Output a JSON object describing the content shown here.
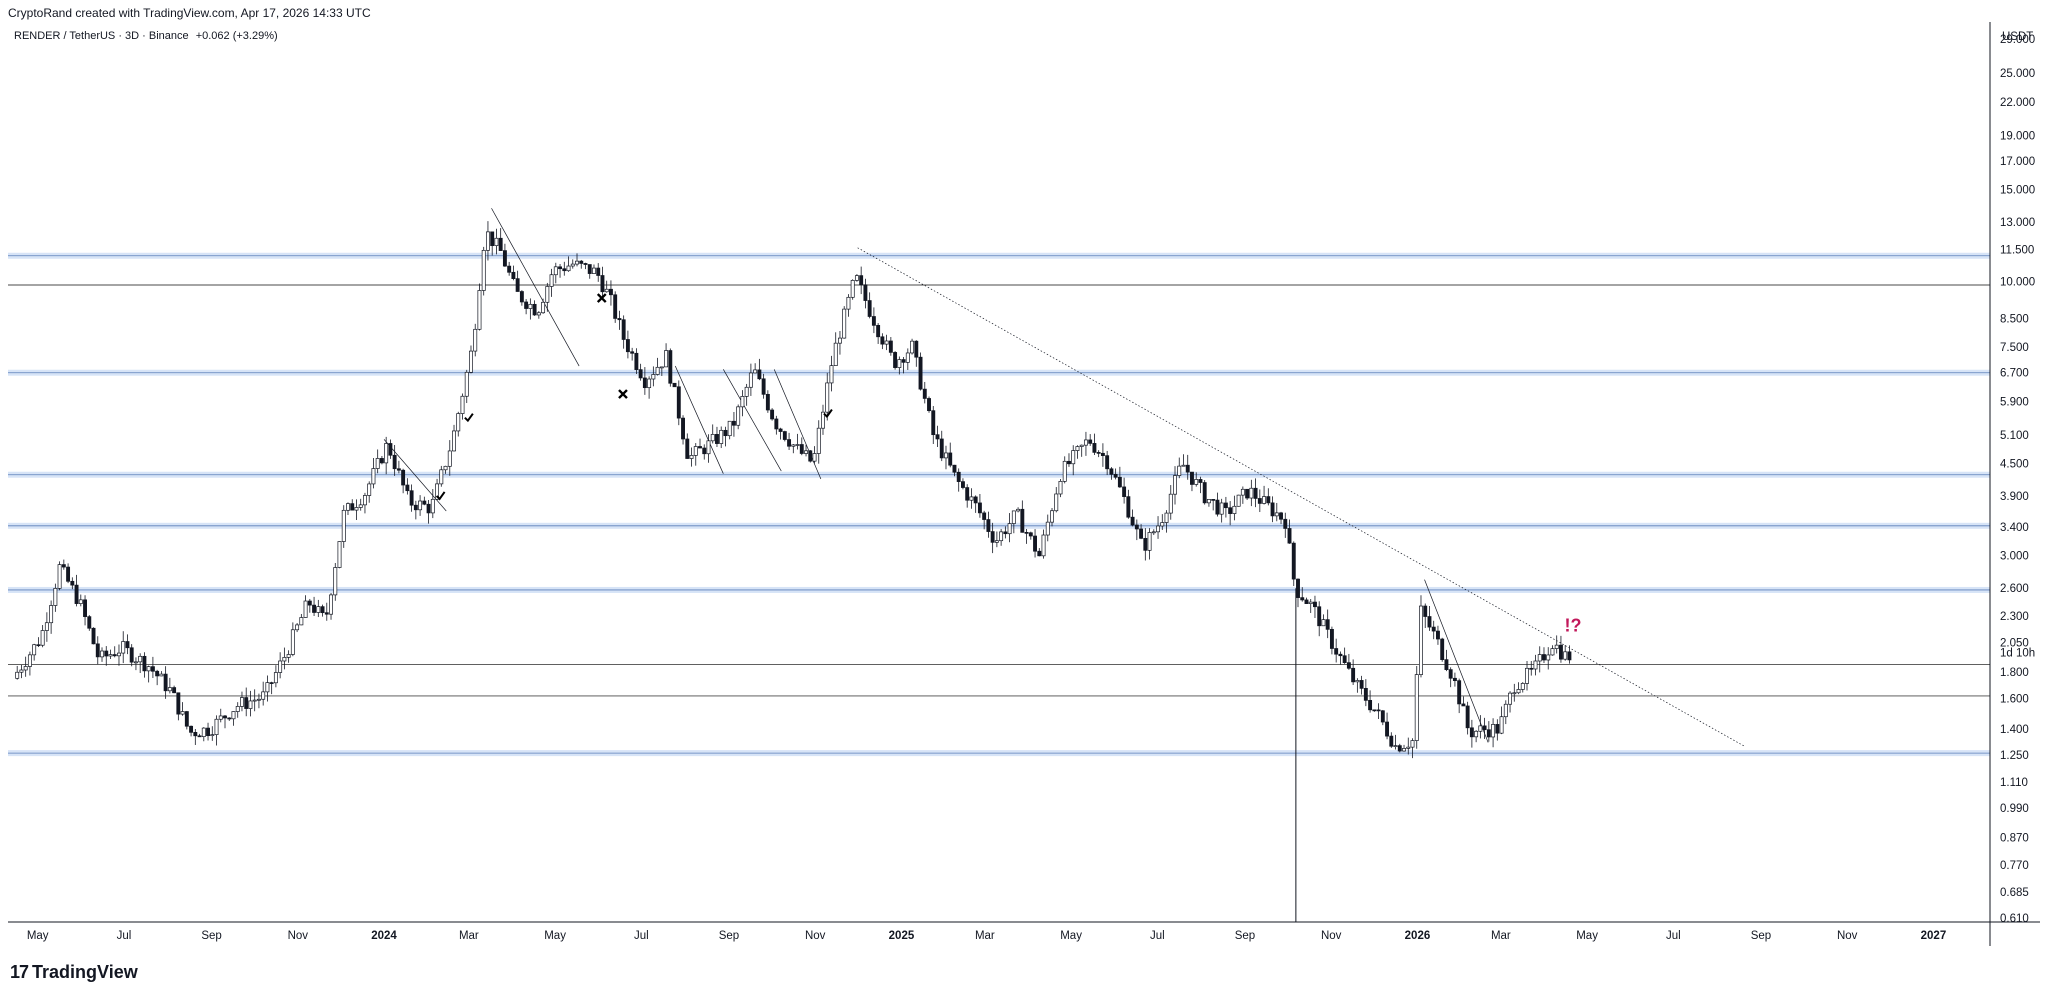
{
  "header": {
    "credit": "CryptoRand created with TradingView.com, Apr 17, 2026 14:33 UTC",
    "symbol": "RENDER / TetherUS · 3D · Binance",
    "change": "+0.062 (+3.29%)"
  },
  "brand": {
    "logo": "17",
    "name": "TradingView"
  },
  "colors": {
    "up": "#ffffff",
    "down": "#131722",
    "wick": "#131722",
    "level": "#b7cdf0",
    "annotation": "#c2185b"
  },
  "chart_data": {
    "type": "candlestick",
    "title": "RENDER / TetherUS · 3D · Binance",
    "ylabel": "USDT",
    "y_scale": "log",
    "ylim": [
      0.6,
      31
    ],
    "y_ticks": [
      29.0,
      25.0,
      22.0,
      19.0,
      17.0,
      15.0,
      13.0,
      11.5,
      10.0,
      8.5,
      7.5,
      6.7,
      5.9,
      5.1,
      4.5,
      3.9,
      3.4,
      3.0,
      2.6,
      2.3,
      2.05,
      1.8,
      1.6,
      1.4,
      1.25,
      1.11,
      0.99,
      0.87,
      0.77,
      0.685,
      0.61
    ],
    "y_tick_labels": [
      "29.000",
      "25.000",
      "22.000",
      "19.000",
      "17.000",
      "15.000",
      "13.000",
      "11.500",
      "10.000",
      "8.500",
      "7.500",
      "6.700",
      "5.900",
      "5.100",
      "4.500",
      "3.900",
      "3.400",
      "3.000",
      "2.600",
      "2.300",
      "2.050",
      "1.800",
      "1.600",
      "1.400",
      "1.250",
      "1.110",
      "0.990",
      "0.870",
      "0.770",
      "0.685",
      "0.610"
    ],
    "countdown_label": "1d 10h",
    "x_ticks": [
      {
        "label": "May",
        "date": "2023-05-01",
        "year": false
      },
      {
        "label": "Jul",
        "date": "2023-07-01",
        "year": false
      },
      {
        "label": "Sep",
        "date": "2023-09-01",
        "year": false
      },
      {
        "label": "Nov",
        "date": "2023-11-01",
        "year": false
      },
      {
        "label": "2024",
        "date": "2024-01-01",
        "year": true
      },
      {
        "label": "Mar",
        "date": "2024-03-01",
        "year": false
      },
      {
        "label": "May",
        "date": "2024-05-01",
        "year": false
      },
      {
        "label": "Jul",
        "date": "2024-07-01",
        "year": false
      },
      {
        "label": "Sep",
        "date": "2024-09-01",
        "year": false
      },
      {
        "label": "Nov",
        "date": "2024-11-01",
        "year": false
      },
      {
        "label": "2025",
        "date": "2025-01-01",
        "year": true
      },
      {
        "label": "Mar",
        "date": "2025-03-01",
        "year": false
      },
      {
        "label": "May",
        "date": "2025-05-01",
        "year": false
      },
      {
        "label": "Jul",
        "date": "2025-07-01",
        "year": false
      },
      {
        "label": "Sep",
        "date": "2025-09-01",
        "year": false
      },
      {
        "label": "Nov",
        "date": "2025-11-01",
        "year": false
      },
      {
        "label": "2026",
        "date": "2026-01-01",
        "year": true
      },
      {
        "label": "Mar",
        "date": "2026-03-01",
        "year": false
      },
      {
        "label": "May",
        "date": "2026-05-01",
        "year": false
      },
      {
        "label": "Jul",
        "date": "2026-07-01",
        "year": false
      },
      {
        "label": "Sep",
        "date": "2026-09-01",
        "year": false
      },
      {
        "label": "Nov",
        "date": "2026-11-01",
        "year": false
      },
      {
        "label": "2027",
        "date": "2027-01-01",
        "year": true
      }
    ],
    "price_path": [
      [
        "2023-04-15",
        1.75
      ],
      [
        "2023-05-05",
        2.1
      ],
      [
        "2023-05-18",
        2.85
      ],
      [
        "2023-06-01",
        2.45
      ],
      [
        "2023-06-15",
        1.9
      ],
      [
        "2023-07-01",
        2.0
      ],
      [
        "2023-07-20",
        1.85
      ],
      [
        "2023-08-05",
        1.65
      ],
      [
        "2023-08-18",
        1.38
      ],
      [
        "2023-09-01",
        1.4
      ],
      [
        "2023-09-20",
        1.55
      ],
      [
        "2023-10-10",
        1.62
      ],
      [
        "2023-10-25",
        1.95
      ],
      [
        "2023-11-10",
        2.45
      ],
      [
        "2023-11-22",
        2.25
      ],
      [
        "2023-12-05",
        3.6
      ],
      [
        "2023-12-20",
        3.95
      ],
      [
        "2024-01-05",
        4.9
      ],
      [
        "2024-01-20",
        3.8
      ],
      [
        "2024-02-05",
        3.7
      ],
      [
        "2024-02-20",
        5.0
      ],
      [
        "2024-03-05",
        7.5
      ],
      [
        "2024-03-14",
        12.5
      ],
      [
        "2024-03-25",
        11.4
      ],
      [
        "2024-04-05",
        9.5
      ],
      [
        "2024-04-20",
        8.8
      ],
      [
        "2024-05-01",
        10.5
      ],
      [
        "2024-05-15",
        10.8
      ],
      [
        "2024-06-01",
        10.4
      ],
      [
        "2024-06-10",
        9.3
      ],
      [
        "2024-06-20",
        7.8
      ],
      [
        "2024-07-05",
        6.5
      ],
      [
        "2024-07-20",
        7.2
      ],
      [
        "2024-08-05",
        4.6
      ],
      [
        "2024-08-20",
        4.9
      ],
      [
        "2024-09-05",
        5.3
      ],
      [
        "2024-09-20",
        6.8
      ],
      [
        "2024-10-05",
        5.4
      ],
      [
        "2024-10-20",
        4.8
      ],
      [
        "2024-11-01",
        4.5
      ],
      [
        "2024-11-15",
        7.2
      ],
      [
        "2024-12-01",
        10.2
      ],
      [
        "2024-12-12",
        8.7
      ],
      [
        "2024-12-28",
        7.0
      ],
      [
        "2025-01-10",
        7.5
      ],
      [
        "2025-01-25",
        5.1
      ],
      [
        "2025-02-10",
        4.2
      ],
      [
        "2025-02-25",
        3.7
      ],
      [
        "2025-03-10",
        3.2
      ],
      [
        "2025-03-25",
        3.6
      ],
      [
        "2025-04-10",
        3.0
      ],
      [
        "2025-04-25",
        4.3
      ],
      [
        "2025-05-15",
        5.0
      ],
      [
        "2025-05-28",
        4.55
      ],
      [
        "2025-06-10",
        3.8
      ],
      [
        "2025-06-22",
        3.1
      ],
      [
        "2025-07-05",
        3.5
      ],
      [
        "2025-07-20",
        4.5
      ],
      [
        "2025-08-05",
        3.9
      ],
      [
        "2025-08-20",
        3.6
      ],
      [
        "2025-09-05",
        4.0
      ],
      [
        "2025-09-20",
        3.7
      ],
      [
        "2025-10-01",
        3.5
      ],
      [
        "2025-10-08",
        2.6
      ],
      [
        "2025-10-20",
        2.4
      ],
      [
        "2025-11-05",
        2.0
      ],
      [
        "2025-11-20",
        1.7
      ],
      [
        "2025-12-05",
        1.5
      ],
      [
        "2025-12-18",
        1.3
      ],
      [
        "2025-12-30",
        1.33
      ],
      [
        "2026-01-05",
        2.35
      ],
      [
        "2026-01-15",
        2.1
      ],
      [
        "2026-01-28",
        1.75
      ],
      [
        "2026-02-08",
        1.38
      ],
      [
        "2026-02-20",
        1.4
      ],
      [
        "2026-03-01",
        1.4
      ],
      [
        "2026-03-12",
        1.7
      ],
      [
        "2026-03-25",
        1.8
      ],
      [
        "2026-04-08",
        2.05
      ],
      [
        "2026-04-17",
        1.93
      ]
    ],
    "horizontal_levels": [
      {
        "price": 11.2,
        "style": "band"
      },
      {
        "price": 9.85,
        "style": "line"
      },
      {
        "price": 6.7,
        "style": "band"
      },
      {
        "price": 4.28,
        "style": "band"
      },
      {
        "price": 3.42,
        "style": "band"
      },
      {
        "price": 2.58,
        "style": "band"
      },
      {
        "price": 1.86,
        "style": "line"
      },
      {
        "price": 1.62,
        "style": "line"
      },
      {
        "price": 1.26,
        "style": "band"
      }
    ],
    "trendlines": [
      {
        "from": [
          "2024-03-17",
          13.8
        ],
        "to": [
          "2024-05-18",
          6.9
        ],
        "style": "solid"
      },
      {
        "from": [
          "2024-01-01",
          5.0
        ],
        "to": [
          "2024-02-14",
          3.65
        ],
        "style": "solid"
      },
      {
        "from": [
          "2024-07-25",
          6.9
        ],
        "to": [
          "2024-08-28",
          4.3
        ],
        "style": "solid"
      },
      {
        "from": [
          "2024-08-28",
          6.8
        ],
        "to": [
          "2024-10-08",
          4.35
        ],
        "style": "solid"
      },
      {
        "from": [
          "2024-10-03",
          6.8
        ],
        "to": [
          "2024-11-05",
          4.2
        ],
        "style": "solid"
      },
      {
        "from": [
          "2026-01-06",
          2.7
        ],
        "to": [
          "2026-02-20",
          1.32
        ],
        "style": "solid"
      },
      {
        "from": [
          "2024-12-01",
          11.6
        ],
        "to": [
          "2026-08-20",
          1.3
        ],
        "style": "dotted"
      }
    ],
    "vertical_lines": [
      {
        "date": "2025-10-07"
      }
    ],
    "annotations": [
      {
        "type": "check",
        "date": "2024-03-01",
        "price": 5.5
      },
      {
        "type": "check",
        "date": "2024-02-10",
        "price": 3.9
      },
      {
        "type": "cross",
        "date": "2024-06-03",
        "price": 9.3
      },
      {
        "type": "cross",
        "date": "2024-06-18",
        "price": 6.1
      },
      {
        "type": "check",
        "date": "2024-11-10",
        "price": 5.6
      },
      {
        "type": "label",
        "text": "!?",
        "date": "2026-04-15",
        "price": 2.15
      }
    ]
  }
}
